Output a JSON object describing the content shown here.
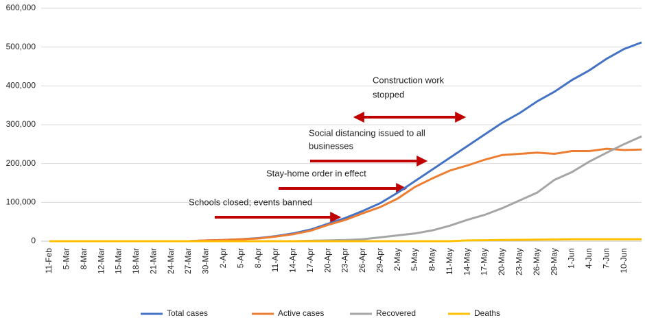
{
  "chart_data": {
    "type": "line",
    "categories": [
      "11-Feb",
      "5-Mar",
      "8-Mar",
      "12-Mar",
      "15-Mar",
      "18-Mar",
      "21-Mar",
      "24-Mar",
      "27-Mar",
      "30-Mar",
      "2-Apr",
      "5-Apr",
      "8-Apr",
      "11-Apr",
      "14-Apr",
      "17-Apr",
      "20-Apr",
      "23-Apr",
      "26-Apr",
      "29-Apr",
      "2-May",
      "5-May",
      "8-May",
      "11-May",
      "14-May",
      "17-May",
      "20-May",
      "23-May",
      "26-May",
      "29-May",
      "1-Jun",
      "4-Jun",
      "7-Jun",
      "10-Jun",
      null
    ],
    "series": [
      {
        "name": "Total cases",
        "color": "#4472c4",
        "values": [
          0,
          0,
          0,
          0,
          0,
          0,
          0,
          0,
          0,
          2000,
          3000,
          5000,
          8000,
          13000,
          20000,
          30000,
          45000,
          60000,
          78000,
          98000,
          125000,
          155000,
          185000,
          215000,
          245000,
          275000,
          305000,
          330000,
          360000,
          385000,
          415000,
          440000,
          470000,
          495000,
          512000
        ]
      },
      {
        "name": "Active cases",
        "color": "#ed7d31",
        "values": [
          0,
          0,
          0,
          0,
          0,
          0,
          0,
          0,
          0,
          2000,
          3000,
          5000,
          7000,
          12000,
          18000,
          27000,
          42000,
          55000,
          72000,
          88000,
          110000,
          140000,
          162000,
          182000,
          195000,
          210000,
          222000,
          225000,
          228000,
          225000,
          232000,
          232000,
          238000,
          235000,
          236000
        ]
      },
      {
        "name": "Recovered",
        "color": "#a5a5a5",
        "values": [
          0,
          0,
          0,
          0,
          0,
          0,
          0,
          0,
          0,
          0,
          0,
          0,
          0,
          0,
          0,
          1000,
          2000,
          3000,
          5000,
          10000,
          15000,
          20000,
          28000,
          40000,
          55000,
          68000,
          85000,
          105000,
          125000,
          158000,
          178000,
          205000,
          228000,
          250000,
          270000
        ]
      },
      {
        "name": "Deaths",
        "color": "#ffc000",
        "values": [
          0,
          0,
          0,
          0,
          0,
          0,
          0,
          0,
          0,
          0,
          0,
          0,
          0,
          0,
          0,
          0,
          0,
          0,
          0,
          0,
          0,
          0,
          0,
          0,
          2000,
          2500,
          3000,
          3500,
          4000,
          4500,
          5000,
          5000,
          5000,
          5000,
          5000
        ]
      }
    ],
    "ylim": [
      0,
      600000
    ],
    "yticks": [
      {
        "value": 0,
        "label": "0"
      },
      {
        "value": 100000,
        "label": "100,000"
      },
      {
        "value": 200000,
        "label": "200,000"
      },
      {
        "value": 300000,
        "label": "300,000"
      },
      {
        "value": 400000,
        "label": "400,000"
      },
      {
        "value": 500000,
        "label": "500,000"
      },
      {
        "value": 600000,
        "label": "600,000"
      }
    ],
    "grid": true,
    "legend": "bottom",
    "annotations": [
      "Construction work",
      "stopped",
      "Social distancing issued to all",
      "businesses",
      "Stay-home order in effect",
      "Schools closed; events banned"
    ]
  }
}
